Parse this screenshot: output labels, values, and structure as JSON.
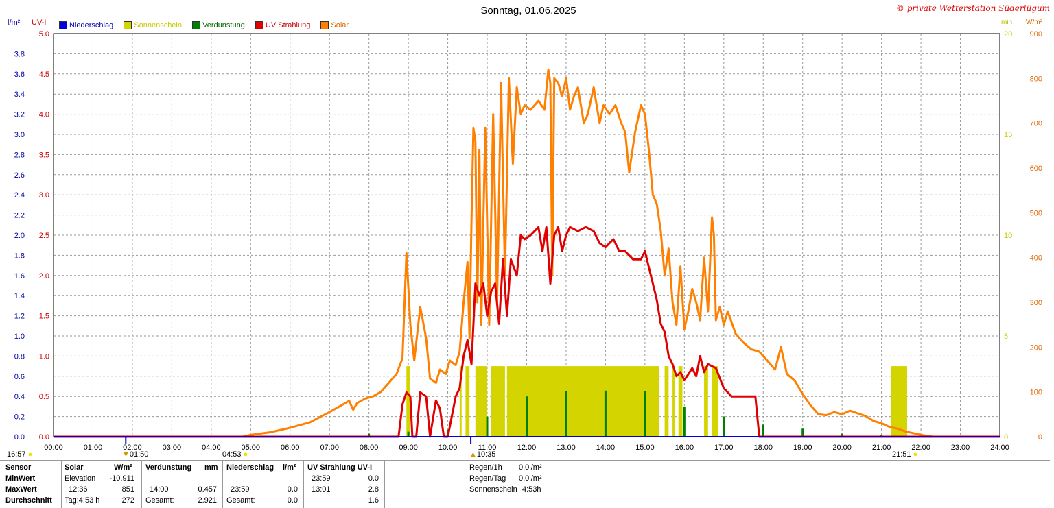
{
  "header": {
    "title": "Sonntag, 01.06.2025",
    "copyright": "© private Wetterstation Süderlügum"
  },
  "axes": {
    "left1_unit": "l/m²",
    "left2_unit": "UV-I",
    "right1_unit": "min",
    "right2_unit": "W/m²"
  },
  "legend": [
    {
      "label": "Niederschlag",
      "color": "#0000dd"
    },
    {
      "label": "Sonnenschein",
      "color": "#d4d400"
    },
    {
      "label": "Verdunstung",
      "color": "#008000"
    },
    {
      "label": "UV Strahlung",
      "color": "#e00000"
    },
    {
      "label": "Solar",
      "color": "#ff8000"
    }
  ],
  "sun_events": {
    "moonset": "16:57",
    "moonrise_left": "01:50",
    "sunrise": "04:53",
    "max": "10:35",
    "sunset": "21:51"
  },
  "chart_data": {
    "type": "line",
    "title": "Sonntag, 01.06.2025",
    "x_ticks": [
      "00:00",
      "01:00",
      "02:00",
      "03:00",
      "04:00",
      "05:00",
      "06:00",
      "07:00",
      "08:00",
      "09:00",
      "10:00",
      "11:00",
      "12:00",
      "13:00",
      "14:00",
      "15:00",
      "16:00",
      "17:00",
      "18:00",
      "19:00",
      "20:00",
      "21:00",
      "22:00",
      "23:00",
      "24:00"
    ],
    "xlim": [
      0,
      24
    ],
    "axis_precip_ticks": [
      "0.0",
      "0.2",
      "0.4",
      "0.6",
      "0.8",
      "1.0",
      "1.2",
      "1.4",
      "1.6",
      "1.8",
      "2.0",
      "2.2",
      "2.4",
      "2.6",
      "2.8",
      "3.0",
      "3.2",
      "3.4",
      "3.6",
      "3.8"
    ],
    "axis_uv_ticks": [
      "0.0",
      "0.5",
      "1.0",
      "1.5",
      "2.0",
      "2.5",
      "3.0",
      "3.5",
      "4.0",
      "4.5",
      "5.0"
    ],
    "axis_sun_ticks": [
      "0",
      "5",
      "10",
      "15",
      "20"
    ],
    "axis_solar_ticks": [
      "0",
      "100",
      "200",
      "300",
      "400",
      "500",
      "600",
      "700",
      "800",
      "900"
    ],
    "ylim_uv": [
      0,
      5
    ],
    "ylim_solar": [
      0,
      900
    ],
    "ylim_sun": [
      0,
      20
    ],
    "series": [
      {
        "name": "Solar",
        "color": "#ff8000",
        "points": [
          [
            0,
            0
          ],
          [
            4.8,
            0
          ],
          [
            5.0,
            4
          ],
          [
            5.5,
            10
          ],
          [
            6.0,
            20
          ],
          [
            6.5,
            32
          ],
          [
            7.0,
            55
          ],
          [
            7.3,
            70
          ],
          [
            7.5,
            80
          ],
          [
            7.6,
            60
          ],
          [
            7.7,
            75
          ],
          [
            7.9,
            85
          ],
          [
            8.1,
            90
          ],
          [
            8.3,
            100
          ],
          [
            8.5,
            120
          ],
          [
            8.7,
            140
          ],
          [
            8.85,
            175
          ],
          [
            8.95,
            410
          ],
          [
            9.05,
            250
          ],
          [
            9.15,
            170
          ],
          [
            9.3,
            290
          ],
          [
            9.45,
            220
          ],
          [
            9.55,
            130
          ],
          [
            9.7,
            120
          ],
          [
            9.8,
            150
          ],
          [
            9.95,
            140
          ],
          [
            10.05,
            170
          ],
          [
            10.2,
            160
          ],
          [
            10.3,
            190
          ],
          [
            10.4,
            300
          ],
          [
            10.5,
            390
          ],
          [
            10.55,
            220
          ],
          [
            10.6,
            480
          ],
          [
            10.65,
            690
          ],
          [
            10.7,
            660
          ],
          [
            10.75,
            300
          ],
          [
            10.8,
            640
          ],
          [
            10.85,
            250
          ],
          [
            10.95,
            690
          ],
          [
            11.05,
            250
          ],
          [
            11.15,
            720
          ],
          [
            11.25,
            300
          ],
          [
            11.35,
            790
          ],
          [
            11.45,
            360
          ],
          [
            11.55,
            800
          ],
          [
            11.65,
            610
          ],
          [
            11.75,
            780
          ],
          [
            11.85,
            720
          ],
          [
            11.95,
            740
          ],
          [
            12.1,
            730
          ],
          [
            12.3,
            750
          ],
          [
            12.45,
            730
          ],
          [
            12.55,
            820
          ],
          [
            12.6,
            790
          ],
          [
            12.65,
            360
          ],
          [
            12.7,
            800
          ],
          [
            12.8,
            790
          ],
          [
            12.9,
            760
          ],
          [
            13.0,
            800
          ],
          [
            13.1,
            730
          ],
          [
            13.2,
            760
          ],
          [
            13.3,
            780
          ],
          [
            13.45,
            700
          ],
          [
            13.55,
            720
          ],
          [
            13.7,
            780
          ],
          [
            13.85,
            700
          ],
          [
            13.95,
            740
          ],
          [
            14.1,
            720
          ],
          [
            14.25,
            740
          ],
          [
            14.4,
            700
          ],
          [
            14.5,
            680
          ],
          [
            14.6,
            590
          ],
          [
            14.75,
            680
          ],
          [
            14.9,
            740
          ],
          [
            15.0,
            720
          ],
          [
            15.1,
            640
          ],
          [
            15.2,
            540
          ],
          [
            15.3,
            520
          ],
          [
            15.4,
            460
          ],
          [
            15.5,
            360
          ],
          [
            15.6,
            420
          ],
          [
            15.7,
            300
          ],
          [
            15.8,
            250
          ],
          [
            15.9,
            380
          ],
          [
            16.0,
            240
          ],
          [
            16.1,
            280
          ],
          [
            16.2,
            330
          ],
          [
            16.3,
            300
          ],
          [
            16.4,
            260
          ],
          [
            16.5,
            400
          ],
          [
            16.6,
            280
          ],
          [
            16.7,
            490
          ],
          [
            16.75,
            450
          ],
          [
            16.8,
            260
          ],
          [
            16.9,
            290
          ],
          [
            17.0,
            250
          ],
          [
            17.1,
            280
          ],
          [
            17.3,
            230
          ],
          [
            17.5,
            210
          ],
          [
            17.7,
            195
          ],
          [
            17.9,
            190
          ],
          [
            18.1,
            170
          ],
          [
            18.3,
            150
          ],
          [
            18.45,
            200
          ],
          [
            18.6,
            140
          ],
          [
            18.8,
            125
          ],
          [
            19.0,
            95
          ],
          [
            19.2,
            70
          ],
          [
            19.4,
            50
          ],
          [
            19.6,
            48
          ],
          [
            19.8,
            55
          ],
          [
            20.0,
            50
          ],
          [
            20.2,
            58
          ],
          [
            20.4,
            52
          ],
          [
            20.6,
            46
          ],
          [
            20.8,
            35
          ],
          [
            21.0,
            30
          ],
          [
            21.2,
            22
          ],
          [
            21.4,
            18
          ],
          [
            21.6,
            12
          ],
          [
            21.8,
            8
          ],
          [
            22.0,
            4
          ],
          [
            22.3,
            0
          ]
        ]
      },
      {
        "name": "UV Strahlung",
        "color": "#e00000",
        "points": [
          [
            0,
            0
          ],
          [
            8.75,
            0
          ],
          [
            8.85,
            0.4
          ],
          [
            8.95,
            0.55
          ],
          [
            9.05,
            0.5
          ],
          [
            9.1,
            0
          ],
          [
            9.2,
            0
          ],
          [
            9.3,
            0.55
          ],
          [
            9.45,
            0.5
          ],
          [
            9.55,
            0
          ],
          [
            9.7,
            0.45
          ],
          [
            9.8,
            0.35
          ],
          [
            9.9,
            0
          ],
          [
            10.0,
            0
          ],
          [
            10.2,
            0.5
          ],
          [
            10.3,
            0.6
          ],
          [
            10.4,
            1.0
          ],
          [
            10.5,
            1.2
          ],
          [
            10.6,
            0.9
          ],
          [
            10.7,
            1.9
          ],
          [
            10.8,
            1.75
          ],
          [
            10.9,
            1.9
          ],
          [
            11.0,
            1.5
          ],
          [
            11.1,
            1.8
          ],
          [
            11.2,
            1.9
          ],
          [
            11.3,
            1.4
          ],
          [
            11.4,
            2.2
          ],
          [
            11.5,
            1.5
          ],
          [
            11.6,
            2.2
          ],
          [
            11.75,
            2.0
          ],
          [
            11.85,
            2.5
          ],
          [
            11.95,
            2.45
          ],
          [
            12.1,
            2.5
          ],
          [
            12.3,
            2.6
          ],
          [
            12.4,
            2.3
          ],
          [
            12.5,
            2.6
          ],
          [
            12.6,
            1.9
          ],
          [
            12.7,
            2.5
          ],
          [
            12.8,
            2.6
          ],
          [
            12.9,
            2.3
          ],
          [
            13.0,
            2.5
          ],
          [
            13.1,
            2.6
          ],
          [
            13.3,
            2.55
          ],
          [
            13.5,
            2.6
          ],
          [
            13.7,
            2.55
          ],
          [
            13.85,
            2.4
          ],
          [
            14.0,
            2.35
          ],
          [
            14.2,
            2.45
          ],
          [
            14.35,
            2.3
          ],
          [
            14.5,
            2.3
          ],
          [
            14.7,
            2.2
          ],
          [
            14.9,
            2.2
          ],
          [
            15.0,
            2.3
          ],
          [
            15.1,
            2.1
          ],
          [
            15.2,
            1.9
          ],
          [
            15.3,
            1.7
          ],
          [
            15.4,
            1.4
          ],
          [
            15.5,
            1.3
          ],
          [
            15.6,
            1.0
          ],
          [
            15.7,
            0.9
          ],
          [
            15.8,
            0.75
          ],
          [
            15.9,
            0.8
          ],
          [
            16.0,
            0.7
          ],
          [
            16.2,
            0.85
          ],
          [
            16.3,
            0.75
          ],
          [
            16.4,
            1.0
          ],
          [
            16.5,
            0.8
          ],
          [
            16.6,
            0.9
          ],
          [
            16.8,
            0.85
          ],
          [
            17.0,
            0.6
          ],
          [
            17.2,
            0.5
          ],
          [
            17.4,
            0.5
          ],
          [
            17.6,
            0.5
          ],
          [
            17.8,
            0.5
          ],
          [
            17.9,
            0
          ],
          [
            24,
            0
          ]
        ]
      }
    ],
    "sunshine_blocks": [
      [
        8.95,
        9.05
      ],
      [
        10.3,
        10.35
      ],
      [
        10.45,
        10.55
      ],
      [
        10.7,
        11.0
      ],
      [
        11.1,
        11.45
      ],
      [
        11.5,
        15.35
      ],
      [
        15.5,
        15.6
      ],
      [
        15.7,
        15.75
      ],
      [
        15.85,
        15.95
      ],
      [
        16.5,
        16.6
      ],
      [
        16.7,
        16.85
      ],
      [
        21.25,
        21.65
      ]
    ],
    "sunshine_level_min": 3.5,
    "evaporation_bars": [
      [
        7.0,
        0.01
      ],
      [
        8.0,
        0.03
      ],
      [
        9.0,
        0.05
      ],
      [
        10.0,
        0.07
      ],
      [
        11.0,
        0.2
      ],
      [
        12.0,
        0.4
      ],
      [
        13.0,
        0.45
      ],
      [
        14.0,
        0.457
      ],
      [
        15.0,
        0.45
      ],
      [
        16.0,
        0.3
      ],
      [
        17.0,
        0.2
      ],
      [
        18.0,
        0.12
      ],
      [
        19.0,
        0.08
      ],
      [
        20.0,
        0.03
      ],
      [
        21.0,
        0.02
      ]
    ]
  },
  "stats": {
    "headers": {
      "sensor": "Sensor",
      "solar": "Solar",
      "solar_unit": "W/m²",
      "evap": "Verdunstung",
      "evap_unit": "mm",
      "precip": "Niederschlag",
      "precip_unit": "l/m²",
      "uv": "UV Strahlung UV-I"
    },
    "rows": [
      {
        "label": "MinWert",
        "solar_time": "Elevation",
        "solar_val": "-10.911",
        "evap_time": "",
        "evap_val": "",
        "precip_time": "",
        "precip_val": "",
        "uv_time": "23:59",
        "uv_val": "0.0"
      },
      {
        "label": "MaxWert",
        "solar_time": "12:36",
        "solar_val": "851",
        "evap_time": "14:00",
        "evap_val": "0.457",
        "precip_time": "23:59",
        "precip_val": "0.0",
        "uv_time": "13:01",
        "uv_val": "2.8"
      },
      {
        "label": "Durchschnitt",
        "solar_time": "Tag:4:53 h",
        "solar_val": "272",
        "evap_time": "Gesamt:",
        "evap_val": "2.921",
        "precip_time": "Gesamt:",
        "precip_val": "0.0",
        "uv_time": "",
        "uv_val": "1.6"
      }
    ],
    "rain": [
      {
        "label": "Regen/1h",
        "value": "0.0l/m²"
      },
      {
        "label": "Regen/Tag",
        "value": "0.0l/m²"
      },
      {
        "label": "Sonnenschein",
        "value": "4:53h"
      }
    ]
  }
}
